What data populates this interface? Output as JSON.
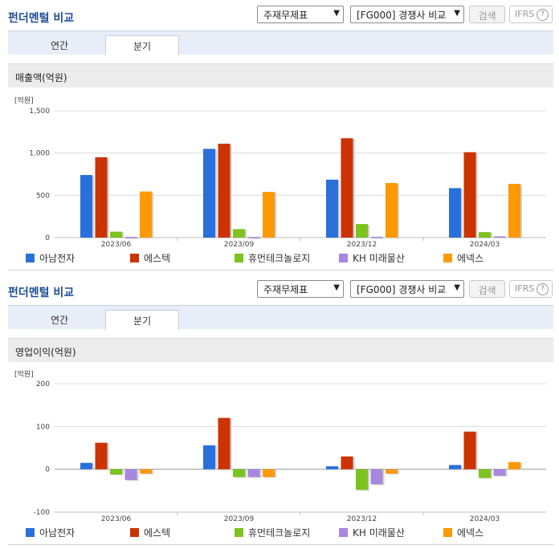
{
  "panels": [
    {
      "title": "펀더멘털 비교",
      "select1": "주재무제표",
      "select2": "[FG000] 경쟁사 비교",
      "search": "검색",
      "ifrs": "IFRS",
      "ifrs_help": "?",
      "tabs": [
        "연간",
        "분기"
      ],
      "active_tab": 1,
      "subtitle": "매출액(억원)",
      "unit": "[억원]"
    },
    {
      "title": "펀더멘털 비교",
      "select1": "주재무제표",
      "select2": "[FG000] 경쟁사 비교",
      "search": "검색",
      "ifrs": "IFRS",
      "ifrs_help": "?",
      "tabs": [
        "연간",
        "분기"
      ],
      "active_tab": 1,
      "subtitle": "영업이익(억원)",
      "unit": "[억원]"
    }
  ],
  "chart_data": [
    {
      "type": "bar",
      "title": "매출액(억원)",
      "ylabel": "[억원]",
      "categories": [
        "2023/06",
        "2023/09",
        "2023/12",
        "2024/03"
      ],
      "ylim": [
        0,
        1500
      ],
      "yticks": [
        0,
        500,
        1000,
        1500
      ],
      "ytick_labels": [
        "0",
        "500",
        "1,000",
        "1,500"
      ],
      "grid": true,
      "legend": "bottom",
      "series": [
        {
          "name": "아남전자",
          "color": "#2a6fdb",
          "values": [
            740,
            1050,
            685,
            585
          ]
        },
        {
          "name": "에스텍",
          "color": "#cc3300",
          "values": [
            950,
            1110,
            1175,
            1010
          ]
        },
        {
          "name": "휴먼테크놀로지",
          "color": "#7cc31e",
          "values": [
            70,
            100,
            160,
            65
          ]
        },
        {
          "name": "KH 미래물산",
          "color": "#a788de",
          "values": [
            8,
            8,
            10,
            15
          ]
        },
        {
          "name": "에넥스",
          "color": "#ff9900",
          "values": [
            545,
            540,
            645,
            635
          ]
        }
      ]
    },
    {
      "type": "bar",
      "title": "영업이익(억원)",
      "ylabel": "[억원]",
      "categories": [
        "2023/06",
        "2023/09",
        "2023/12",
        "2024/03"
      ],
      "ylim": [
        -100,
        200
      ],
      "yticks": [
        -100,
        0,
        100,
        200
      ],
      "ytick_labels": [
        "-100",
        "0",
        "100",
        "200"
      ],
      "grid": true,
      "legend": "bottom",
      "series": [
        {
          "name": "아남전자",
          "color": "#2a6fdb",
          "values": [
            15,
            56,
            7,
            10
          ]
        },
        {
          "name": "에스텍",
          "color": "#cc3300",
          "values": [
            62,
            120,
            30,
            88
          ]
        },
        {
          "name": "휴먼테크놀로지",
          "color": "#7cc31e",
          "values": [
            -12,
            -18,
            -48,
            -20
          ]
        },
        {
          "name": "KH 미래물산",
          "color": "#a788de",
          "values": [
            -25,
            -18,
            -35,
            -15
          ]
        },
        {
          "name": "에넥스",
          "color": "#ff9900",
          "values": [
            -10,
            -18,
            -10,
            17
          ]
        }
      ]
    }
  ]
}
